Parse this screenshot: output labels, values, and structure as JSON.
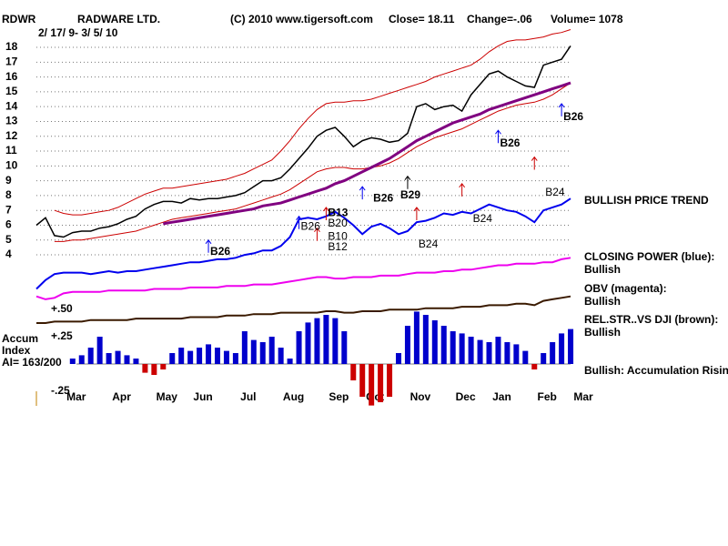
{
  "chart_data": [
    {
      "type": "line",
      "symbol": "RDWR",
      "title": "RADWARE LTD.",
      "source": "(C) 2010 www.tigersoft.com",
      "close_text": "Close= 18.11",
      "change_text": "Change=-.06",
      "volume_text": "Volume= 1078",
      "date_range": "2/ 17/ 9- 3/ 5/ 10",
      "trend_label": "BULLISH PRICE TREND",
      "categories": [
        null,
        null,
        null,
        null,
        "Mar",
        null,
        null,
        null,
        null,
        "Apr",
        null,
        null,
        null,
        null,
        "May",
        null,
        null,
        null,
        "Jun",
        null,
        null,
        null,
        null,
        "Jul",
        null,
        null,
        null,
        null,
        "Aug",
        null,
        null,
        null,
        null,
        "Sep",
        null,
        null,
        null,
        "Oct",
        null,
        null,
        null,
        null,
        "Nov",
        null,
        null,
        null,
        null,
        "Dec",
        null,
        null,
        null,
        "Jan",
        null,
        null,
        null,
        null,
        "Feb",
        null,
        null,
        null,
        "Mar"
      ],
      "ylim": [
        -1,
        19.5
      ],
      "yticks": [
        4,
        5,
        6,
        7,
        8,
        9,
        10,
        11,
        12,
        13,
        14,
        15,
        16,
        17,
        18
      ],
      "grid": true,
      "series": [
        {
          "color": "#000000",
          "width": 1.5,
          "values": [
            6.0,
            6.5,
            5.3,
            5.2,
            5.5,
            5.6,
            5.6,
            5.8,
            5.9,
            6.1,
            6.4,
            6.6,
            7.1,
            7.4,
            7.6,
            7.6,
            7.5,
            7.8,
            7.7,
            7.8,
            7.8,
            7.9,
            8.0,
            8.2,
            8.6,
            9.0,
            9.0,
            9.2,
            9.8,
            10.5,
            11.2,
            12.0,
            12.4,
            12.6,
            12.0,
            11.3,
            11.7,
            11.9,
            11.8,
            11.6,
            11.7,
            12.2,
            14.0,
            14.2,
            13.8,
            14.0,
            14.1,
            13.7,
            14.8,
            15.5,
            16.2,
            16.4,
            16.0,
            15.7,
            15.4,
            15.3,
            16.8,
            17.0,
            17.2,
            18.1,
            null
          ]
        },
        {
          "color": "#cc0000",
          "width": 1,
          "values": [
            null,
            null,
            7.0,
            6.8,
            6.7,
            6.7,
            6.8,
            6.9,
            7.0,
            7.2,
            7.5,
            7.8,
            8.1,
            8.3,
            8.5,
            8.5,
            8.6,
            8.7,
            8.8,
            8.9,
            9.0,
            9.1,
            9.3,
            9.5,
            9.8,
            10.1,
            10.4,
            11.0,
            11.7,
            12.5,
            13.2,
            13.8,
            14.2,
            14.3,
            14.3,
            14.4,
            14.4,
            14.5,
            14.7,
            14.9,
            15.1,
            15.3,
            15.5,
            15.7,
            16.0,
            16.2,
            16.4,
            16.6,
            16.8,
            17.2,
            17.7,
            18.1,
            18.4,
            18.5,
            18.5,
            18.6,
            18.7,
            18.9,
            19.0,
            19.2,
            null
          ]
        },
        {
          "color": "#cc0000",
          "width": 1,
          "values": [
            null,
            null,
            4.9,
            4.9,
            5.0,
            5.0,
            5.1,
            5.2,
            5.3,
            5.4,
            5.5,
            5.6,
            5.8,
            6.0,
            6.2,
            6.4,
            6.5,
            6.6,
            6.7,
            6.8,
            6.9,
            7.0,
            7.1,
            7.3,
            7.5,
            7.7,
            7.9,
            8.1,
            8.4,
            8.8,
            9.2,
            9.6,
            9.8,
            9.9,
            9.9,
            9.8,
            9.8,
            9.9,
            10.0,
            10.2,
            10.5,
            10.9,
            11.3,
            11.6,
            11.9,
            12.1,
            12.3,
            12.5,
            12.8,
            13.1,
            13.4,
            13.7,
            13.9,
            14.1,
            14.2,
            14.3,
            14.5,
            14.8,
            15.2,
            15.6,
            null
          ]
        },
        {
          "color": "#800080",
          "width": 3,
          "values": [
            null,
            null,
            null,
            null,
            null,
            null,
            null,
            null,
            null,
            null,
            null,
            null,
            null,
            null,
            6.1,
            6.2,
            6.3,
            6.4,
            6.5,
            6.6,
            6.7,
            6.8,
            6.9,
            7.0,
            7.1,
            7.3,
            7.4,
            7.5,
            7.7,
            7.9,
            8.1,
            8.3,
            8.5,
            8.8,
            9.0,
            9.3,
            9.6,
            9.9,
            10.2,
            10.5,
            10.9,
            11.3,
            11.7,
            12.0,
            12.3,
            12.6,
            12.9,
            13.1,
            13.3,
            13.5,
            13.8,
            14.0,
            14.2,
            14.4,
            14.6,
            14.8,
            15.0,
            15.2,
            15.4,
            15.6,
            null
          ]
        },
        {
          "name": "CLOSING POWER (blue):",
          "status": "Bullish",
          "color": "#0000ee",
          "width": 2,
          "values": [
            1.7,
            2.3,
            2.7,
            2.8,
            2.8,
            2.8,
            2.7,
            2.8,
            2.9,
            2.8,
            2.9,
            2.9,
            3.0,
            3.1,
            3.2,
            3.3,
            3.4,
            3.5,
            3.5,
            3.6,
            3.7,
            3.7,
            3.8,
            4.0,
            4.1,
            4.3,
            4.3,
            4.6,
            5.2,
            6.4,
            6.5,
            6.4,
            6.6,
            6.9,
            6.5,
            6.0,
            5.4,
            5.9,
            6.1,
            5.8,
            5.4,
            5.6,
            6.2,
            6.3,
            6.5,
            6.8,
            6.7,
            6.9,
            6.8,
            7.1,
            7.4,
            7.2,
            7.0,
            6.9,
            6.6,
            6.2,
            7.0,
            7.2,
            7.4,
            7.8,
            null
          ]
        },
        {
          "name": "OBV (magenta):",
          "status": "Bullish",
          "color": "#ee00ee",
          "width": 2,
          "values": [
            1.2,
            1.0,
            1.1,
            1.4,
            1.5,
            1.5,
            1.5,
            1.5,
            1.6,
            1.6,
            1.6,
            1.6,
            1.6,
            1.7,
            1.7,
            1.7,
            1.7,
            1.8,
            1.8,
            1.8,
            1.8,
            1.9,
            1.9,
            1.9,
            2.0,
            2.0,
            2.0,
            2.1,
            2.2,
            2.3,
            2.4,
            2.5,
            2.5,
            2.4,
            2.4,
            2.5,
            2.5,
            2.5,
            2.6,
            2.6,
            2.6,
            2.7,
            2.8,
            2.8,
            2.8,
            2.9,
            2.9,
            3.0,
            3.0,
            3.1,
            3.2,
            3.3,
            3.3,
            3.4,
            3.4,
            3.4,
            3.5,
            3.5,
            3.7,
            3.8,
            null
          ]
        },
        {
          "name": "REL.STR..VS DJI (brown):",
          "status": "Bullish",
          "color": "#3a1a00",
          "width": 2,
          "values": [
            -0.6,
            -0.6,
            -0.5,
            -0.5,
            -0.5,
            -0.5,
            -0.4,
            -0.4,
            -0.4,
            -0.4,
            -0.4,
            -0.3,
            -0.3,
            -0.3,
            -0.3,
            -0.3,
            -0.3,
            -0.2,
            -0.2,
            -0.2,
            -0.2,
            -0.1,
            -0.1,
            -0.1,
            0.0,
            0.0,
            0.0,
            0.1,
            0.1,
            0.1,
            0.1,
            0.1,
            0.2,
            0.2,
            0.1,
            0.1,
            0.2,
            0.2,
            0.2,
            0.3,
            0.3,
            0.3,
            0.3,
            0.4,
            0.4,
            0.4,
            0.4,
            0.5,
            0.5,
            0.5,
            0.6,
            0.6,
            0.6,
            0.7,
            0.7,
            0.6,
            0.9,
            1.0,
            1.1,
            1.2,
            null
          ]
        }
      ],
      "signals": [
        {
          "i": 19,
          "y": 5.0,
          "color": "#0000ee"
        },
        {
          "i": 29,
          "y": 6.6,
          "color": "#0000ee"
        },
        {
          "i": 31,
          "y": 5.8,
          "color": "#cc0000"
        },
        {
          "i": 32,
          "y": 7.2,
          "color": "#cc0000"
        },
        {
          "i": 36,
          "y": 8.6,
          "color": "#0000ee"
        },
        {
          "i": 41,
          "y": 9.3,
          "color": "#000000"
        },
        {
          "i": 42,
          "y": 7.2,
          "color": "#cc0000"
        },
        {
          "i": 47,
          "y": 8.8,
          "color": "#cc0000"
        },
        {
          "i": 51,
          "y": 12.4,
          "color": "#0000ee"
        },
        {
          "i": 55,
          "y": 10.6,
          "color": "#cc0000"
        },
        {
          "i": 58,
          "y": 14.2,
          "color": "#0000ee"
        }
      ],
      "signal_labels": [
        {
          "text": "B26",
          "i": 19,
          "y": 4.2,
          "large": false
        },
        {
          "text": "B26",
          "i": 29,
          "y": 5.9,
          "large": true
        },
        {
          "text": "B13",
          "i": 32,
          "y": 6.8,
          "large": false
        },
        {
          "text": "B20",
          "i": 32,
          "y": 6.1,
          "large": true
        },
        {
          "text": "B10",
          "i": 32,
          "y": 5.2,
          "large": true
        },
        {
          "text": "B12",
          "i": 32,
          "y": 4.5,
          "large": true
        },
        {
          "text": "B26",
          "i": 37,
          "y": 7.8,
          "large": false
        },
        {
          "text": "B29",
          "i": 40,
          "y": 8.0,
          "large": false
        },
        {
          "text": "B24",
          "i": 42,
          "y": 4.7,
          "large": true
        },
        {
          "text": "B24",
          "i": 48,
          "y": 6.4,
          "large": true
        },
        {
          "text": "B26",
          "i": 51,
          "y": 11.5,
          "large": false
        },
        {
          "text": "B24",
          "i": 56,
          "y": 8.2,
          "large": true
        },
        {
          "text": "B26",
          "i": 58,
          "y": 13.3,
          "large": false
        }
      ]
    },
    {
      "type": "bar",
      "label_lines": [
        "Accum",
        "Index",
        "AI= 163/200"
      ],
      "note": "Bullish: Accumulation Rising",
      "ylim": [
        -0.45,
        0.55
      ],
      "yticks": [
        {
          "value": 0.5,
          "label": "+.50"
        },
        {
          "value": 0.25,
          "label": "+.25"
        },
        {
          "value": -0.25,
          "label": "-.25"
        }
      ],
      "positive_color": "#0000cc",
      "negative_color": "#cc0000",
      "values": [
        0,
        0,
        0,
        0,
        0.05,
        0.08,
        0.15,
        0.25,
        0.1,
        0.12,
        0.08,
        0.05,
        -0.08,
        -0.1,
        -0.05,
        0.1,
        0.15,
        0.12,
        0.15,
        0.18,
        0.15,
        0.12,
        0.1,
        0.3,
        0.22,
        0.2,
        0.25,
        0.15,
        0.05,
        0.3,
        0.38,
        0.42,
        0.45,
        0.42,
        0.3,
        -0.15,
        -0.3,
        -0.38,
        -0.35,
        -0.3,
        0.1,
        0.35,
        0.48,
        0.45,
        0.4,
        0.35,
        0.3,
        0.28,
        0.25,
        0.22,
        0.2,
        0.25,
        0.2,
        0.18,
        0.12,
        -0.05,
        0.1,
        0.2,
        0.28,
        0.32,
        null
      ]
    }
  ]
}
